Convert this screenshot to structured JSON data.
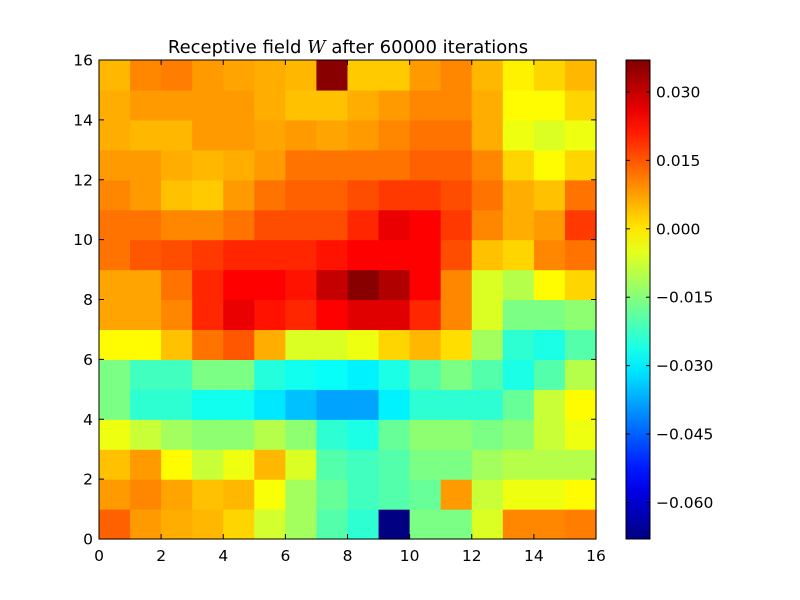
{
  "chart_data": {
    "type": "heatmap",
    "title": "Receptive field W after 60000 iterations",
    "title_parts": {
      "before": "Receptive field ",
      "math": "W",
      "after": " after 60000 iterations"
    },
    "xlabel": "",
    "ylabel": "",
    "xlim": [
      0,
      16
    ],
    "ylim": [
      0,
      16
    ],
    "x_ticks": [
      "0",
      "2",
      "4",
      "6",
      "8",
      "10",
      "12",
      "14",
      "16"
    ],
    "y_ticks": [
      "0",
      "2",
      "4",
      "6",
      "8",
      "10",
      "12",
      "14",
      "16"
    ],
    "colormap": "jet",
    "color_range": [
      -0.068,
      0.037
    ],
    "colorbar_ticks": [
      "0.030",
      "0.015",
      "0.000",
      "−0.015",
      "−0.030",
      "−0.045",
      "−0.060"
    ],
    "colorbar_tick_values": [
      0.03,
      0.015,
      0.0,
      -0.015,
      -0.03,
      -0.045,
      -0.06
    ],
    "grid": false,
    "values": [
      [
        0.014,
        0.008,
        0.006,
        0.005,
        0.002,
        -0.007,
        -0.012,
        -0.02,
        -0.024,
        -0.068,
        -0.016,
        -0.016,
        -0.006,
        0.01,
        0.01,
        0.011
      ],
      [
        0.008,
        0.01,
        0.007,
        0.004,
        0.005,
        -0.003,
        -0.012,
        -0.018,
        -0.022,
        -0.02,
        -0.018,
        0.008,
        -0.008,
        -0.004,
        -0.004,
        -0.002
      ],
      [
        0.004,
        0.008,
        -0.002,
        -0.008,
        -0.004,
        0.005,
        -0.006,
        -0.02,
        -0.022,
        -0.02,
        -0.016,
        -0.016,
        -0.012,
        -0.01,
        -0.01,
        -0.01
      ],
      [
        -0.004,
        -0.008,
        -0.012,
        -0.014,
        -0.014,
        -0.01,
        -0.014,
        -0.024,
        -0.026,
        -0.018,
        -0.014,
        -0.014,
        -0.016,
        -0.014,
        -0.008,
        -0.004
      ],
      [
        -0.016,
        -0.024,
        -0.024,
        -0.027,
        -0.027,
        -0.031,
        -0.035,
        -0.038,
        -0.038,
        -0.03,
        -0.024,
        -0.024,
        -0.024,
        -0.018,
        -0.008,
        -0.002
      ],
      [
        -0.016,
        -0.022,
        -0.022,
        -0.016,
        -0.016,
        -0.025,
        -0.027,
        -0.028,
        -0.03,
        -0.026,
        -0.02,
        -0.016,
        -0.02,
        -0.026,
        -0.02,
        -0.01
      ],
      [
        -0.002,
        -0.002,
        0.004,
        0.012,
        0.015,
        0.006,
        -0.006,
        -0.006,
        -0.004,
        0.002,
        0.005,
        0.001,
        -0.012,
        -0.024,
        -0.026,
        -0.02
      ],
      [
        0.007,
        0.007,
        0.01,
        0.02,
        0.026,
        0.022,
        0.02,
        0.024,
        0.027,
        0.027,
        0.02,
        0.01,
        -0.006,
        -0.016,
        -0.016,
        -0.014
      ],
      [
        0.007,
        0.007,
        0.012,
        0.02,
        0.024,
        0.024,
        0.022,
        0.03,
        0.036,
        0.032,
        0.024,
        0.01,
        -0.006,
        -0.01,
        -0.002,
        0.002
      ],
      [
        0.012,
        0.015,
        0.016,
        0.018,
        0.02,
        0.02,
        0.02,
        0.022,
        0.024,
        0.024,
        0.024,
        0.016,
        0.004,
        0.002,
        0.01,
        0.012
      ],
      [
        0.012,
        0.012,
        0.01,
        0.01,
        0.012,
        0.016,
        0.016,
        0.016,
        0.02,
        0.026,
        0.024,
        0.018,
        0.01,
        0.006,
        0.008,
        0.018
      ],
      [
        0.01,
        0.008,
        0.004,
        0.003,
        0.008,
        0.012,
        0.014,
        0.014,
        0.016,
        0.018,
        0.018,
        0.016,
        0.012,
        0.006,
        0.004,
        0.012
      ],
      [
        0.008,
        0.008,
        0.006,
        0.005,
        0.006,
        0.008,
        0.012,
        0.012,
        0.012,
        0.012,
        0.014,
        0.014,
        0.01,
        0.002,
        -0.002,
        0.002
      ],
      [
        0.006,
        0.005,
        0.005,
        0.008,
        0.008,
        0.007,
        0.008,
        0.007,
        0.008,
        0.01,
        0.012,
        0.012,
        0.006,
        -0.004,
        -0.006,
        -0.004
      ],
      [
        0.006,
        0.008,
        0.008,
        0.008,
        0.008,
        0.006,
        0.004,
        0.004,
        0.006,
        0.008,
        0.01,
        0.01,
        0.006,
        -0.002,
        -0.002,
        0.002
      ],
      [
        0.005,
        0.01,
        0.011,
        0.008,
        0.007,
        0.006,
        0.005,
        0.036,
        0.003,
        0.003,
        0.008,
        0.01,
        0.005,
        -0.001,
        0.002,
        0.005
      ]
    ]
  }
}
